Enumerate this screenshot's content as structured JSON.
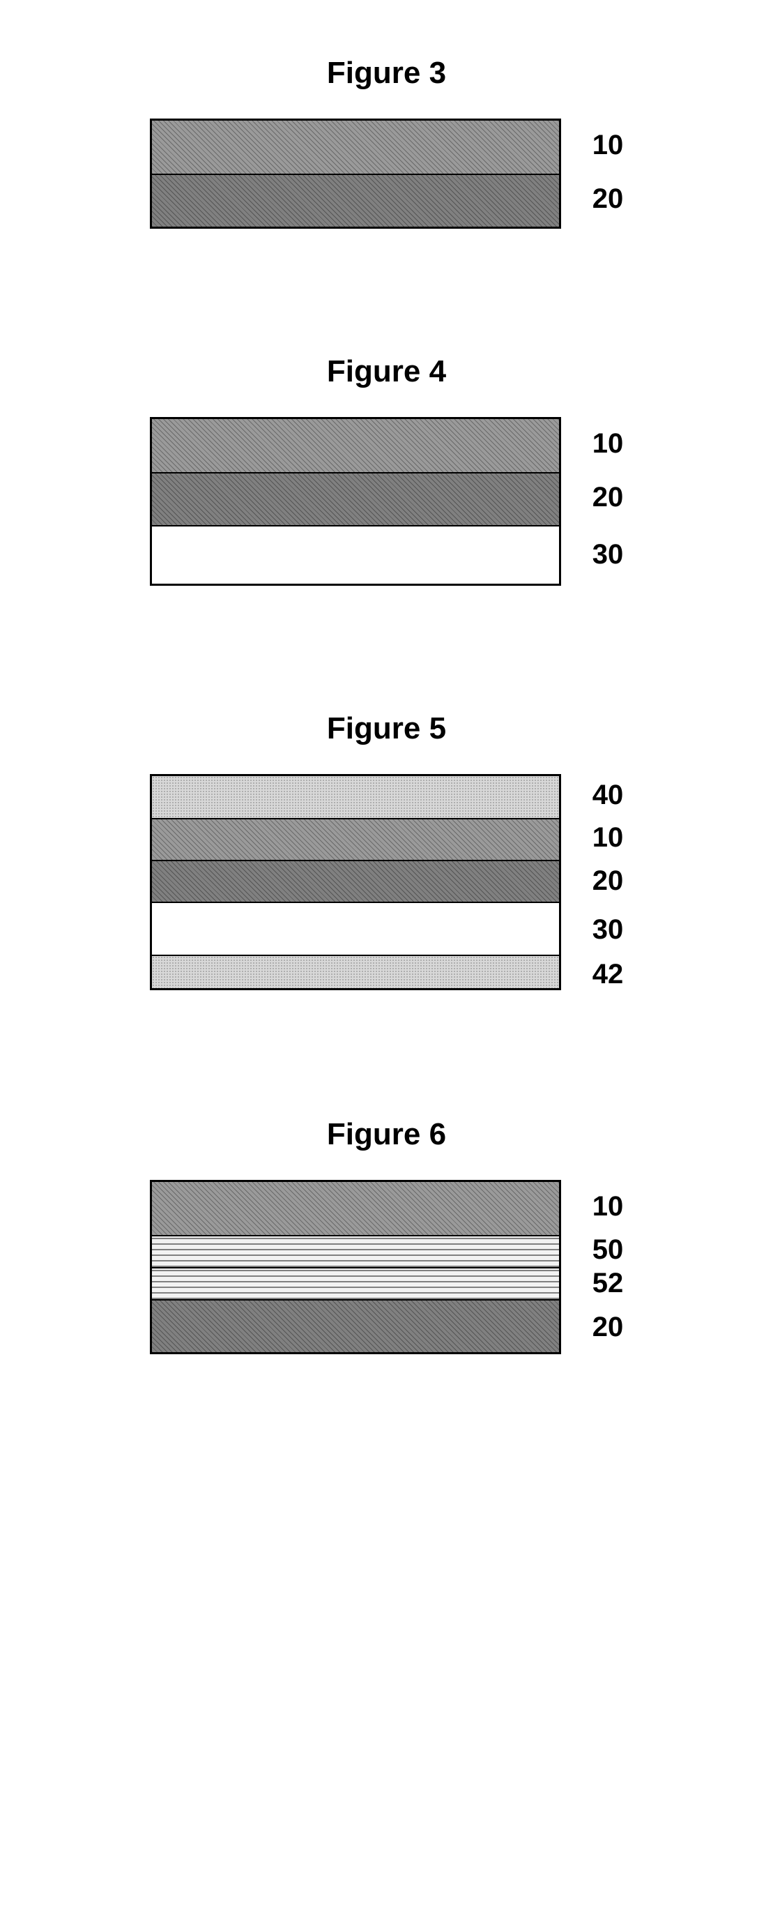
{
  "figures": [
    {
      "title": "Figure 3",
      "title_fontsize": 44,
      "stack_width": 590,
      "label_fontsize": 40,
      "layers": [
        {
          "label": "10",
          "height": 76,
          "fill": "hatch-gray-med"
        },
        {
          "label": "20",
          "height": 76,
          "fill": "hatch-gray-dark"
        }
      ]
    },
    {
      "title": "Figure 4",
      "title_fontsize": 44,
      "stack_width": 590,
      "label_fontsize": 40,
      "layers": [
        {
          "label": "10",
          "height": 76,
          "fill": "hatch-gray-med"
        },
        {
          "label": "20",
          "height": 76,
          "fill": "hatch-gray-dark"
        },
        {
          "label": "30",
          "height": 84,
          "fill": "plain-white"
        }
      ]
    },
    {
      "title": "Figure 5",
      "title_fontsize": 44,
      "stack_width": 590,
      "label_fontsize": 40,
      "layers": [
        {
          "label": "40",
          "height": 60,
          "fill": "dots-light"
        },
        {
          "label": "10",
          "height": 60,
          "fill": "hatch-gray-med"
        },
        {
          "label": "20",
          "height": 60,
          "fill": "hatch-gray-dark"
        },
        {
          "label": "30",
          "height": 76,
          "fill": "plain-white"
        },
        {
          "label": "42",
          "height": 48,
          "fill": "dots-light"
        }
      ]
    },
    {
      "title": "Figure 6",
      "title_fontsize": 44,
      "stack_width": 590,
      "label_fontsize": 40,
      "layers": [
        {
          "label": "10",
          "height": 76,
          "fill": "hatch-gray-med"
        },
        {
          "label": "50",
          "height": 46,
          "fill": "wave-lines"
        },
        {
          "label": "52",
          "height": 46,
          "fill": "wave-lines"
        },
        {
          "label": "20",
          "height": 76,
          "fill": "hatch-gray-dark"
        }
      ]
    }
  ],
  "patterns": {
    "hatch-gray-med": {
      "bg": "#9a9a9a",
      "type": "diagonal",
      "line_color": "#6a6a6a",
      "spacing": 5
    },
    "hatch-gray-dark": {
      "bg": "#808080",
      "type": "diagonal",
      "line_color": "#555555",
      "spacing": 5
    },
    "plain-white": {
      "bg": "#ffffff",
      "type": "none"
    },
    "dots-light": {
      "bg": "#d8d8d8",
      "type": "dots",
      "dot_color": "#a0a0a0",
      "spacing": 4
    },
    "wave-lines": {
      "bg": "#f2f2f2",
      "type": "hlines",
      "line_color": "#808080",
      "spacing": 8
    }
  }
}
